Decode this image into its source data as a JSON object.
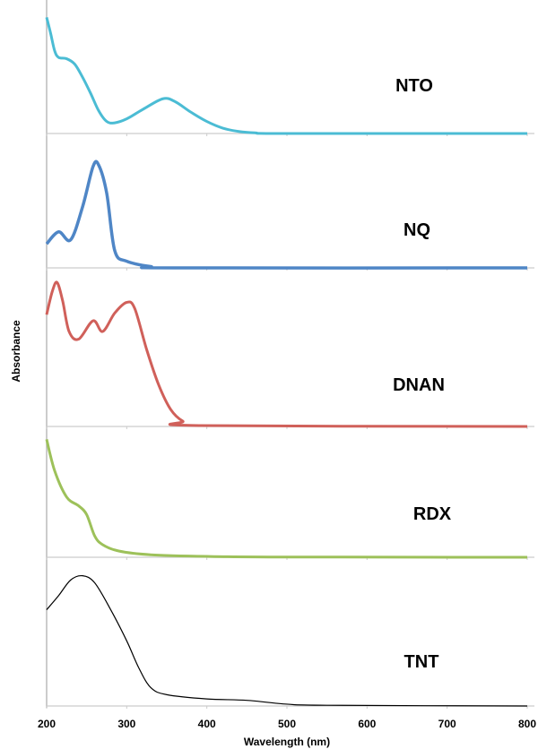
{
  "chart_data": {
    "type": "line",
    "xlabel": "Wavelength (nm)",
    "ylabel": "Absorbance",
    "xlim": [
      200,
      810
    ],
    "xticks": [
      "200",
      "300",
      "400",
      "500",
      "600",
      "700",
      "800"
    ],
    "grid": false,
    "legend": "none",
    "layout": "stacked panels, one per compound, each with its own baseline; absorbance in relative units (no y tick labels shown)",
    "panels": [
      {
        "name": "NTO",
        "color": "#4bbcd4",
        "ylim": [
          0,
          1
        ],
        "x": [
          200,
          205,
          210,
          215,
          225,
          235,
          245,
          255,
          265,
          275,
          285,
          300,
          320,
          345,
          360,
          380,
          400,
          420,
          440,
          460,
          500,
          800
        ],
        "y": [
          0.87,
          0.75,
          0.62,
          0.57,
          0.56,
          0.52,
          0.42,
          0.3,
          0.17,
          0.09,
          0.08,
          0.11,
          0.18,
          0.26,
          0.24,
          0.16,
          0.09,
          0.04,
          0.015,
          0.005,
          0,
          0
        ]
      },
      {
        "name": "NQ",
        "color": "#4f86c6",
        "ylim": [
          0,
          1
        ],
        "x": [
          200,
          215,
          230,
          245,
          258,
          265,
          275,
          285,
          300,
          330,
          360,
          800
        ],
        "y": [
          0.18,
          0.27,
          0.21,
          0.46,
          0.76,
          0.77,
          0.56,
          0.13,
          0.05,
          0.01,
          0,
          0
        ]
      },
      {
        "name": "DNAN",
        "color": "#d0605a",
        "ylim": [
          0,
          1
        ],
        "x": [
          200,
          207,
          213,
          220,
          228,
          240,
          258,
          270,
          285,
          300,
          310,
          325,
          340,
          355,
          370,
          390,
          800
        ],
        "y": [
          0.73,
          0.88,
          0.94,
          0.82,
          0.62,
          0.57,
          0.69,
          0.62,
          0.74,
          0.81,
          0.77,
          0.5,
          0.27,
          0.11,
          0.035,
          0.006,
          0
        ]
      },
      {
        "name": "RDX",
        "color": "#9dc15a",
        "ylim": [
          0,
          1
        ],
        "x": [
          200,
          210,
          225,
          240,
          250,
          260,
          270,
          290,
          330,
          400,
          500,
          800
        ],
        "y": [
          0.94,
          0.69,
          0.48,
          0.41,
          0.34,
          0.17,
          0.1,
          0.05,
          0.02,
          0.007,
          0.002,
          0
        ]
      },
      {
        "name": "TNT",
        "color": "#000000",
        "ylim": [
          0,
          1
        ],
        "x": [
          200,
          215,
          230,
          245,
          260,
          280,
          300,
          315,
          330,
          350,
          400,
          450,
          500,
          550,
          800
        ],
        "y": [
          0.68,
          0.78,
          0.89,
          0.92,
          0.87,
          0.68,
          0.46,
          0.27,
          0.13,
          0.08,
          0.05,
          0.04,
          0.013,
          0.005,
          0
        ]
      }
    ]
  }
}
